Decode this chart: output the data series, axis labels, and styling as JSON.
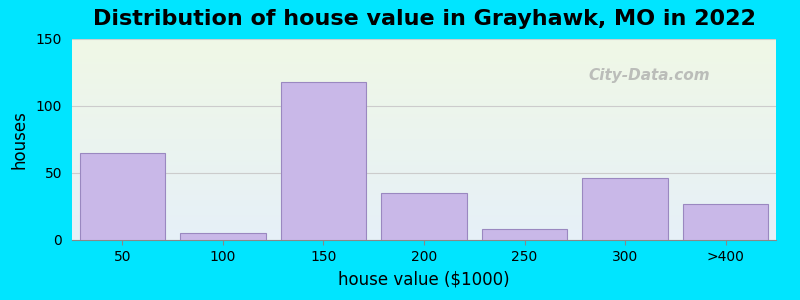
{
  "title": "Distribution of house value in Grayhawk, MO in 2022",
  "xlabel": "house value ($1000)",
  "ylabel": "houses",
  "bar_labels": [
    "50",
    "100",
    "150",
    "200",
    "250",
    "300",
    ">400"
  ],
  "bar_values": [
    65,
    5,
    118,
    35,
    8,
    46,
    27
  ],
  "bar_color": "#c9b8e8",
  "bar_edgecolor": "#9a88c0",
  "ylim": [
    0,
    150
  ],
  "yticks": [
    0,
    50,
    100,
    150
  ],
  "background_outer": "#00e5ff",
  "grid_color": "#cccccc",
  "title_fontsize": 16,
  "axis_label_fontsize": 12,
  "watermark_text": "City-Data.com"
}
